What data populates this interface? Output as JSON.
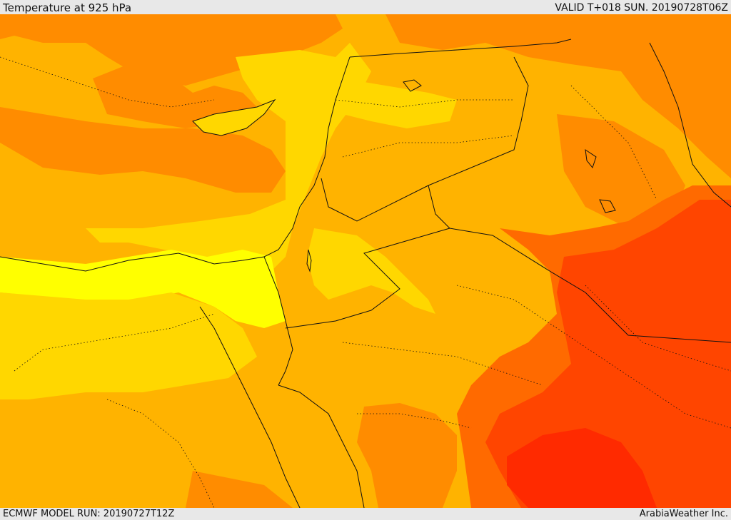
{
  "header": {
    "title": "Temperature at 925 hPa",
    "valid": "VALID T+018 SUN. 20190728T06Z"
  },
  "footer": {
    "model_run": "ECMWF MODEL RUN: 20190727T12Z",
    "credit": "ArabiaWeather Inc."
  },
  "map": {
    "colors": {
      "pale_yellow": "#ffff00",
      "yellow": "#ffd700",
      "light_orange": "#ffb300",
      "orange": "#ff8c00",
      "dark_orange": "#ff6a00",
      "red_orange": "#ff4500",
      "red": "#ff2a00",
      "border": "#111111"
    }
  }
}
